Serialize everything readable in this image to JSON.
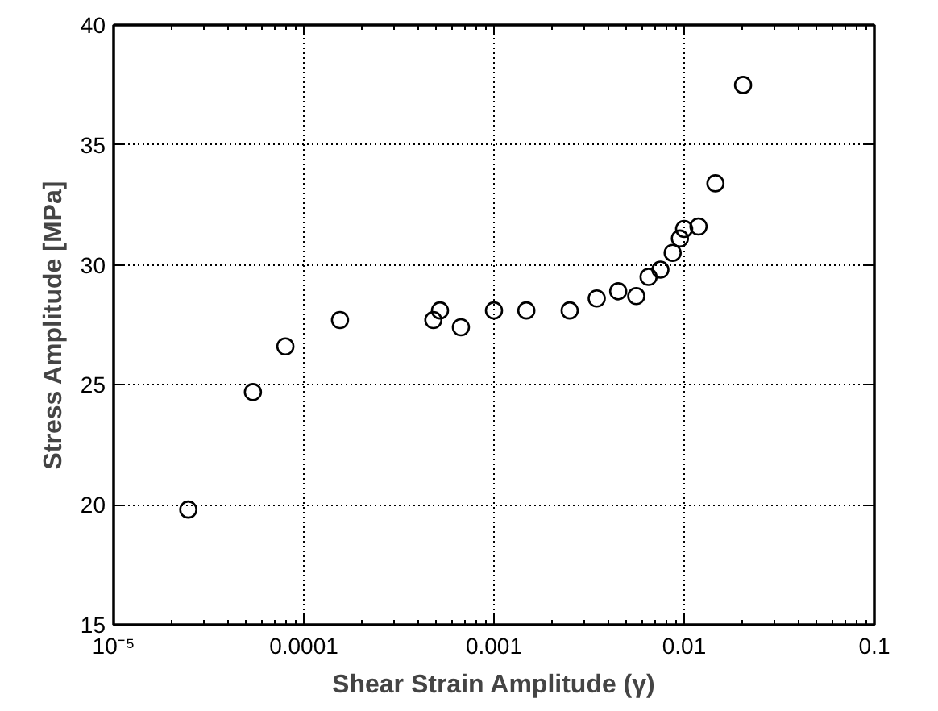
{
  "chart_data": {
    "type": "scatter",
    "xlabel": "Shear Strain Amplitude (γ)",
    "ylabel": "Stress Amplitude [MPa]",
    "log": "x",
    "grid": true,
    "marker": "circle",
    "x": [
      2.47e-05,
      5.4e-05,
      8e-05,
      0.000155,
      0.00048,
      0.00052,
      0.00067,
      0.001,
      0.00148,
      0.0025,
      0.00347,
      0.0045,
      0.0056,
      0.0065,
      0.0075,
      0.0087,
      0.0095,
      0.01,
      0.0119,
      0.0146,
      0.0204
    ],
    "series": [
      {
        "color": "#000000",
        "values": [
          19.8,
          24.7,
          26.6,
          27.7,
          27.7,
          28.1,
          27.4,
          28.1,
          28.1,
          28.1,
          28.6,
          28.9,
          28.7,
          29.5,
          29.8,
          30.5,
          31.1,
          31.5,
          31.6,
          33.4,
          37.5
        ]
      }
    ],
    "xlim": [
      1e-05,
      0.1
    ],
    "xticks": [
      {
        "value": 1e-05,
        "label": "10⁻⁵"
      },
      {
        "value": 0.0001,
        "label": "0.0001"
      },
      {
        "value": 0.001,
        "label": "0.001"
      },
      {
        "value": 0.01,
        "label": "0.01"
      },
      {
        "value": 0.1,
        "label": "0.1"
      }
    ],
    "ylim": [
      15,
      40
    ],
    "yticks": [
      15,
      20,
      25,
      30,
      35,
      40
    ]
  }
}
